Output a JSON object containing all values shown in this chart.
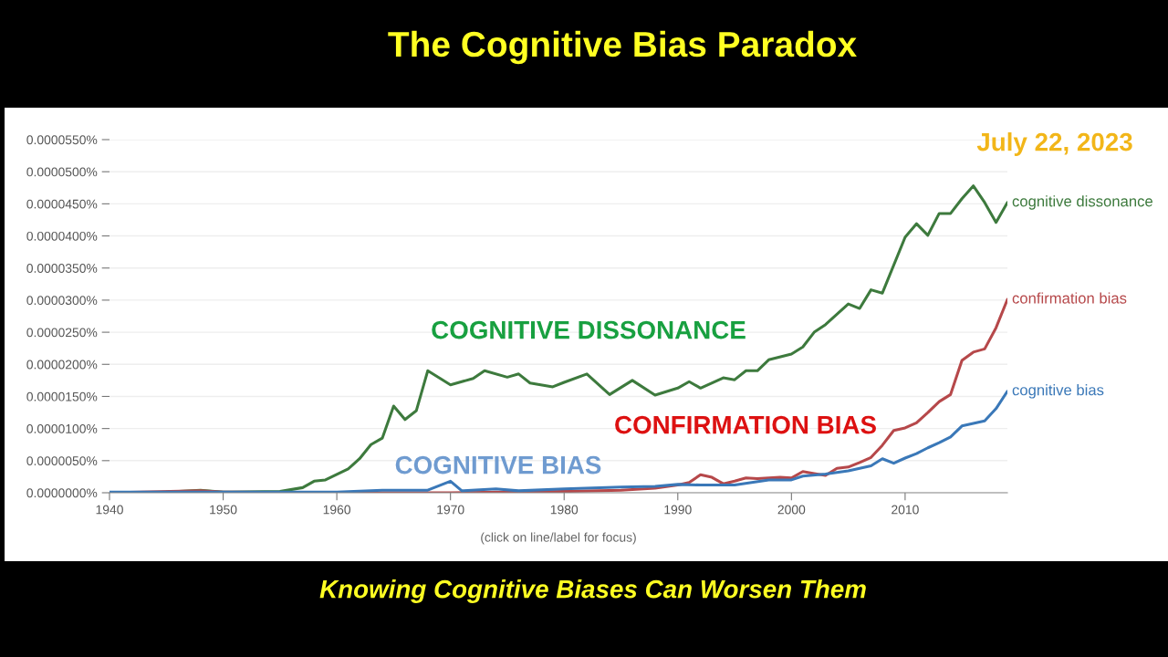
{
  "chart_data": {
    "type": "line",
    "title": "The Cognitive Bias Paradox",
    "subtitle": "Knowing Cognitive Biases Can Worsen Them",
    "xlim": [
      1940,
      2019
    ],
    "xticks": [
      1940,
      1950,
      1960,
      1970,
      1980,
      1990,
      2000,
      2010
    ],
    "ylim": [
      0,
      5.5e-05
    ],
    "yticks": [
      {
        "value": 0,
        "label": "0.0000000%"
      },
      {
        "value": 5e-06,
        "label": "0.0000050%"
      },
      {
        "value": 1e-05,
        "label": "0.0000100%"
      },
      {
        "value": 1.5e-05,
        "label": "0.0000150%"
      },
      {
        "value": 2e-05,
        "label": "0.0000200%"
      },
      {
        "value": 2.5e-05,
        "label": "0.0000250%"
      },
      {
        "value": 3e-05,
        "label": "0.0000300%"
      },
      {
        "value": 3.5e-05,
        "label": "0.0000350%"
      },
      {
        "value": 4e-05,
        "label": "0.0000400%"
      },
      {
        "value": 4.5e-05,
        "label": "0.0000450%"
      },
      {
        "value": 5e-05,
        "label": "0.0000500%"
      },
      {
        "value": 5.5e-05,
        "label": "0.0000550%"
      }
    ],
    "grid": "y",
    "legend": false,
    "series": [
      {
        "name": "cognitive dissonance",
        "color": "#3d7a3d",
        "x": [
          1940,
          1945,
          1948,
          1950,
          1955,
          1957,
          1958,
          1959,
          1961,
          1962,
          1963,
          1964,
          1965,
          1966,
          1967,
          1968,
          1970,
          1972,
          1973,
          1975,
          1976,
          1977,
          1979,
          1980,
          1982,
          1984,
          1986,
          1988,
          1990,
          1991,
          1992,
          1994,
          1995,
          1996,
          1997,
          1998,
          2000,
          2001,
          2002,
          2003,
          2005,
          2006,
          2007,
          2008,
          2010,
          2011,
          2012,
          2013,
          2014,
          2015,
          2016,
          2017,
          2018,
          2019
        ],
        "values": [
          0,
          1e-07,
          4e-07,
          1e-07,
          2e-07,
          8e-07,
          1.8e-06,
          2e-06,
          3.7e-06,
          5.3e-06,
          7.5e-06,
          8.5e-06,
          1.35e-05,
          1.14e-05,
          1.28e-05,
          1.9e-05,
          1.68e-05,
          1.78e-05,
          1.9e-05,
          1.8e-05,
          1.85e-05,
          1.71e-05,
          1.65e-05,
          1.72e-05,
          1.85e-05,
          1.53e-05,
          1.75e-05,
          1.52e-05,
          1.63e-05,
          1.73e-05,
          1.63e-05,
          1.79e-05,
          1.76e-05,
          1.9e-05,
          1.9e-05,
          2.07e-05,
          2.16e-05,
          2.27e-05,
          2.5e-05,
          2.62e-05,
          2.94e-05,
          2.87e-05,
          3.16e-05,
          3.11e-05,
          3.98e-05,
          4.19e-05,
          4.01e-05,
          4.35e-05,
          4.35e-05,
          4.58e-05,
          4.78e-05,
          4.52e-05,
          4.21e-05,
          4.52e-05
        ]
      },
      {
        "name": "confirmation bias",
        "color": "#b6484a",
        "x": [
          1940,
          1948,
          1950,
          1960,
          1970,
          1980,
          1985,
          1988,
          1990,
          1991,
          1992,
          1993,
          1994,
          1995,
          1996,
          1997,
          1999,
          2000,
          2001,
          2002,
          2003,
          2004,
          2005,
          2006,
          2007,
          2008,
          2009,
          2010,
          2011,
          2012,
          2013,
          2014,
          2015,
          2016,
          2017,
          2018,
          2019
        ],
        "values": [
          0,
          3e-07,
          1e-07,
          0,
          0,
          2e-07,
          4e-07,
          7e-07,
          1.2e-06,
          1.6e-06,
          2.8e-06,
          2.4e-06,
          1.4e-06,
          1.8e-06,
          2.3e-06,
          2.2e-06,
          2.4e-06,
          2.3e-06,
          3.3e-06,
          3e-06,
          2.7e-06,
          3.8e-06,
          4e-06,
          4.7e-06,
          5.5e-06,
          7.4e-06,
          9.7e-06,
          1.01e-05,
          1.09e-05,
          1.25e-05,
          1.42e-05,
          1.53e-05,
          2.06e-05,
          2.19e-05,
          2.24e-05,
          2.57e-05,
          3.01e-05
        ]
      },
      {
        "name": "cognitive bias",
        "color": "#3a78b8",
        "x": [
          1940,
          1960,
          1964,
          1968,
          1970,
          1971,
          1974,
          1976,
          1980,
          1985,
          1988,
          1990,
          1992,
          1995,
          1998,
          2000,
          2001,
          2003,
          2005,
          2007,
          2008,
          2009,
          2010,
          2011,
          2012,
          2013,
          2014,
          2015,
          2016,
          2017,
          2018,
          2019
        ],
        "values": [
          1e-07,
          1e-07,
          4e-07,
          4e-07,
          1.8e-06,
          3e-07,
          6e-07,
          3e-07,
          6e-07,
          9e-07,
          1e-06,
          1.3e-06,
          1.2e-06,
          1.2e-06,
          2e-06,
          2e-06,
          2.6e-06,
          2.9e-06,
          3.4e-06,
          4.2e-06,
          5.3e-06,
          4.6e-06,
          5.4e-06,
          6.1e-06,
          7e-06,
          7.8e-06,
          8.7e-06,
          1.04e-05,
          1.08e-05,
          1.12e-05,
          1.31e-05,
          1.58e-05
        ]
      }
    ],
    "annotations": [
      "July 22, 2023",
      "COGNITIVE DISSONANCE",
      "CONFIRMATION BIAS",
      "COGNITIVE BIAS",
      "(click on line/label for focus)"
    ]
  }
}
